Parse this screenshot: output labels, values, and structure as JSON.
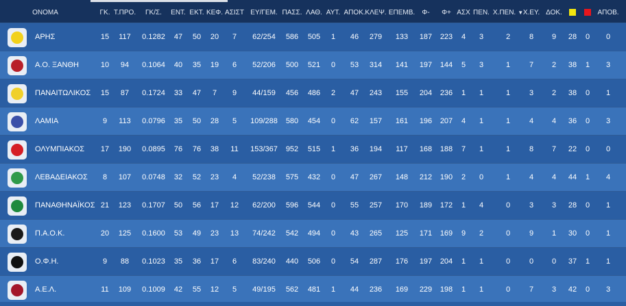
{
  "header": {
    "name": "ΟΝΟΜΑ",
    "cols": [
      "ΓΚ.",
      "Τ.ΠΡΟ.",
      "ΓΚ/Σ.",
      "ΕΝΤ.",
      "ΕΚΤ.",
      "ΚΕΦ.",
      "ΑΣΙΣΤ",
      "ΕΥ/ΓΕΜ.",
      "ΠΑΣΣ.",
      "ΛΑΘ.",
      "ΑΥΤ.",
      "ΑΠΟΚ.",
      "ΚΛΕΨ.",
      "ΕΠΕΜΒ.",
      "Φ-",
      "Φ+",
      "ΑΣΧ",
      "ΠΕΝ.",
      "Χ.ΠΕΝ.",
      "Χ.ΕΥ.",
      "ΔΟΚ.",
      "",
      "",
      "ΑΠΟΒ."
    ],
    "sort_indicator": "▼",
    "yellow_card_color": "#f2e60f",
    "red_card_color": "#e8161c"
  },
  "rows": [
    {
      "name": "ΑΡΗΣ",
      "logo_icon": "aris-logo-icon",
      "logo_color": "#f2d11b",
      "values": [
        "15",
        "117",
        "0.1282",
        "47",
        "50",
        "20",
        "7",
        "62/254",
        "586",
        "505",
        "1",
        "46",
        "279",
        "133",
        "187",
        "223",
        "4",
        "3",
        "2",
        "8",
        "9",
        "28",
        "0",
        "0"
      ]
    },
    {
      "name": "Α.Ο. ΞΑΝΘΗ",
      "logo_icon": "xanthi-logo-icon",
      "logo_color": "#b8202a",
      "values": [
        "10",
        "94",
        "0.1064",
        "40",
        "35",
        "19",
        "6",
        "52/206",
        "500",
        "521",
        "0",
        "53",
        "314",
        "141",
        "197",
        "144",
        "5",
        "3",
        "1",
        "7",
        "2",
        "38",
        "1",
        "3"
      ]
    },
    {
      "name": "ΠΑΝΑΙΤΩΛΙΚΟΣ",
      "logo_icon": "panaitolikos-logo-icon",
      "logo_color": "#f0d02a",
      "values": [
        "15",
        "87",
        "0.1724",
        "33",
        "47",
        "7",
        "9",
        "44/159",
        "456",
        "486",
        "2",
        "47",
        "243",
        "155",
        "204",
        "236",
        "1",
        "1",
        "1",
        "3",
        "2",
        "38",
        "0",
        "1"
      ]
    },
    {
      "name": "ΛΑΜΙΑ",
      "logo_icon": "lamia-logo-icon",
      "logo_color": "#3b4fa8",
      "values": [
        "9",
        "113",
        "0.0796",
        "35",
        "50",
        "28",
        "5",
        "109/288",
        "580",
        "454",
        "0",
        "62",
        "157",
        "161",
        "196",
        "207",
        "4",
        "1",
        "1",
        "4",
        "4",
        "36",
        "0",
        "3"
      ]
    },
    {
      "name": "ΟΛΥΜΠΙΑΚΟΣ",
      "logo_icon": "olympiakos-logo-icon",
      "logo_color": "#d51e25",
      "values": [
        "17",
        "190",
        "0.0895",
        "76",
        "76",
        "38",
        "11",
        "153/367",
        "952",
        "515",
        "1",
        "36",
        "194",
        "117",
        "168",
        "188",
        "7",
        "1",
        "1",
        "8",
        "7",
        "22",
        "0",
        "0"
      ]
    },
    {
      "name": "ΛΕΒΑΔΕΙΑΚΟΣ",
      "logo_icon": "levadiakos-logo-icon",
      "logo_color": "#2f9a4a",
      "values": [
        "8",
        "107",
        "0.0748",
        "32",
        "52",
        "23",
        "4",
        "52/238",
        "575",
        "432",
        "0",
        "47",
        "267",
        "148",
        "212",
        "190",
        "2",
        "0",
        "1",
        "4",
        "4",
        "44",
        "1",
        "4"
      ]
    },
    {
      "name": "ΠΑΝΑΘΗΝΑΪΚΟΣ",
      "logo_icon": "panathinaikos-logo-icon",
      "logo_color": "#1f8a3e",
      "values": [
        "21",
        "123",
        "0.1707",
        "50",
        "56",
        "17",
        "12",
        "62/200",
        "596",
        "544",
        "0",
        "55",
        "257",
        "170",
        "189",
        "172",
        "1",
        "4",
        "0",
        "3",
        "3",
        "28",
        "0",
        "1"
      ]
    },
    {
      "name": "Π.Α.Ο.Κ.",
      "logo_icon": "paok-logo-icon",
      "logo_color": "#1a1a1a",
      "values": [
        "20",
        "125",
        "0.1600",
        "53",
        "49",
        "23",
        "13",
        "74/242",
        "542",
        "494",
        "0",
        "43",
        "265",
        "125",
        "171",
        "169",
        "9",
        "2",
        "0",
        "9",
        "1",
        "30",
        "0",
        "1"
      ]
    },
    {
      "name": "Ο.Φ.Η.",
      "logo_icon": "ofi-logo-icon",
      "logo_color": "#111111",
      "values": [
        "9",
        "88",
        "0.1023",
        "35",
        "36",
        "17",
        "6",
        "83/240",
        "440",
        "506",
        "0",
        "54",
        "287",
        "176",
        "197",
        "204",
        "1",
        "1",
        "0",
        "0",
        "0",
        "37",
        "1",
        "1"
      ]
    },
    {
      "name": "Α.Ε.Λ.",
      "logo_icon": "ael-logo-icon",
      "logo_color": "#a3162a",
      "values": [
        "11",
        "109",
        "0.1009",
        "42",
        "55",
        "12",
        "5",
        "49/195",
        "562",
        "481",
        "1",
        "44",
        "236",
        "169",
        "229",
        "198",
        "1",
        "1",
        "0",
        "7",
        "3",
        "42",
        "0",
        "3"
      ]
    }
  ]
}
